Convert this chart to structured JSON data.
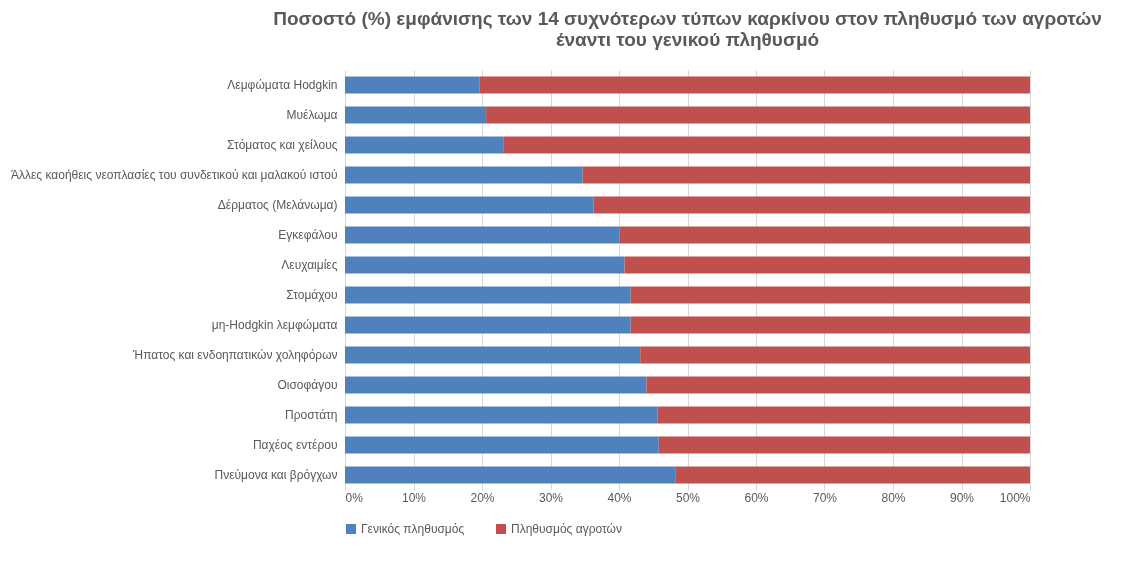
{
  "chart_data": {
    "type": "bar",
    "orientation": "horizontal",
    "stacked": true,
    "title": "Ποσοστό (%) εμφάνισης των 14 συχνότερων τύπων καρκίνου στον πληθυσμό των αγροτών\nέναντι του γενικού πληθυσμό",
    "categories": [
      "Λεμφώματα Hodgkin",
      "Μυέλωμα",
      "Στόματος και χείλους",
      "Άλλες καοήθεις νεοπλασίες του συνδετικού και μαλακού ιστού",
      "Δέρματος (Μελάνωμα)",
      "Εγκεφάλου",
      "Λευχαιμίες",
      "Στομάχου",
      "μη-Hodgkin λεμφώματα",
      "Ήπατος και ενδοηπατικών χοληφόρων",
      "Οισοφάγου",
      "Προστάτη",
      "Παχέος εντέρου",
      "Πνεύμονα και βρόγχων"
    ],
    "series": [
      {
        "name": "Γενικός πληθυσμός",
        "color": "#4f81bd",
        "values": [
          19.6,
          20.6,
          23.1,
          34.7,
          36.3,
          40.1,
          40.8,
          41.7,
          41.7,
          43.1,
          44.0,
          45.6,
          45.8,
          48.3
        ]
      },
      {
        "name": "Πληθυσμός αγροτών",
        "color": "#c0504d",
        "values": [
          80.4,
          79.4,
          76.9,
          65.3,
          63.7,
          59.9,
          59.2,
          58.3,
          58.3,
          56.9,
          56.0,
          54.4,
          54.2,
          51.7
        ]
      }
    ],
    "xlim": [
      0,
      100
    ],
    "xticks": [
      {
        "value": 0,
        "label": "0%"
      },
      {
        "value": 10,
        "label": "10%"
      },
      {
        "value": 20,
        "label": "20%"
      },
      {
        "value": 30,
        "label": "30%"
      },
      {
        "value": 40,
        "label": "40%"
      },
      {
        "value": 50,
        "label": "50%"
      },
      {
        "value": 60,
        "label": "60%"
      },
      {
        "value": 70,
        "label": "70%"
      },
      {
        "value": 80,
        "label": "80%"
      },
      {
        "value": 90,
        "label": "90%"
      },
      {
        "value": 100,
        "label": "100%"
      }
    ],
    "grid": "x",
    "legend": "bottom"
  }
}
